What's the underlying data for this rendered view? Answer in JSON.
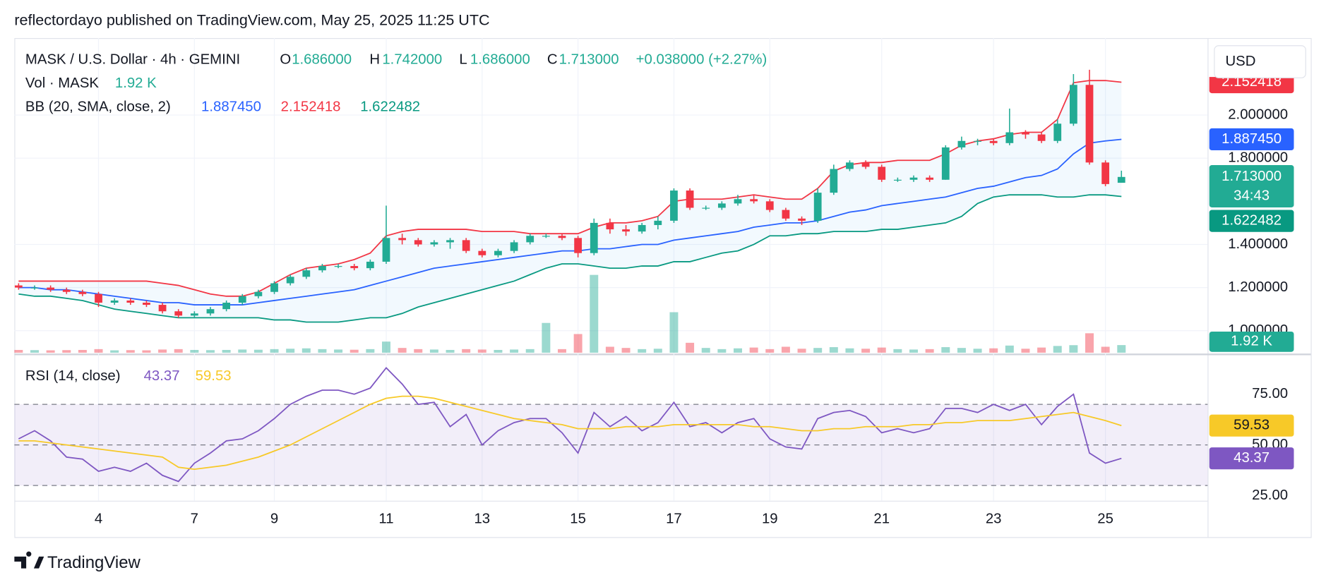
{
  "header": {
    "attribution": "reflectordayo published on TradingView.com, May 25, 2025 11:25 UTC"
  },
  "footer": {
    "brand": "TradingView"
  },
  "chart_data": [
    {
      "type": "candlestick",
      "legend": {
        "symbol": "MASK / U.S. Dollar · 4h · GEMINI",
        "ohlc": [
          {
            "key": "O",
            "value": "1.686000"
          },
          {
            "key": "H",
            "value": "1.742000"
          },
          {
            "key": "L",
            "value": "1.686000"
          },
          {
            "key": "C",
            "value": "1.713000"
          }
        ],
        "change": "+0.038000 (+2.27%)"
      },
      "categories": [
        null,
        null,
        null,
        null,
        null,
        "4",
        null,
        null,
        null,
        null,
        null,
        "7",
        null,
        null,
        null,
        null,
        "9",
        null,
        null,
        null,
        null,
        null,
        null,
        "11",
        null,
        null,
        null,
        null,
        null,
        "13",
        null,
        null,
        null,
        null,
        null,
        "15",
        null,
        null,
        null,
        null,
        null,
        "17",
        null,
        null,
        null,
        null,
        null,
        "19",
        null,
        null,
        null,
        null,
        null,
        null,
        "21",
        null,
        null,
        null,
        null,
        null,
        null,
        "23",
        null,
        null,
        null,
        null,
        null,
        null,
        "25",
        null
      ],
      "open": [
        1.21,
        1.2,
        1.2,
        1.19,
        1.18,
        1.17,
        1.13,
        1.14,
        1.13,
        1.12,
        1.09,
        1.07,
        1.08,
        1.1,
        1.13,
        1.16,
        1.18,
        1.22,
        1.25,
        1.28,
        1.3,
        1.3,
        1.29,
        1.32,
        1.43,
        1.42,
        1.4,
        1.41,
        1.42,
        1.37,
        1.35,
        1.37,
        1.41,
        1.44,
        1.44,
        1.43,
        1.36,
        1.5,
        1.47,
        1.46,
        1.49,
        1.51,
        1.65,
        1.57,
        1.57,
        1.59,
        1.61,
        1.6,
        1.56,
        1.52,
        1.51,
        1.64,
        1.75,
        1.78,
        1.76,
        1.7,
        1.7,
        1.71,
        1.7,
        1.85,
        1.88,
        1.88,
        1.87,
        1.92,
        1.91,
        1.88,
        1.96,
        2.14,
        1.78,
        1.686
      ],
      "high": [
        1.22,
        1.21,
        1.21,
        1.2,
        1.19,
        1.18,
        1.15,
        1.15,
        1.14,
        1.13,
        1.1,
        1.09,
        1.11,
        1.14,
        1.17,
        1.19,
        1.23,
        1.26,
        1.29,
        1.31,
        1.31,
        1.31,
        1.33,
        1.58,
        1.45,
        1.43,
        1.42,
        1.43,
        1.43,
        1.38,
        1.38,
        1.42,
        1.45,
        1.45,
        1.45,
        1.44,
        1.52,
        1.52,
        1.49,
        1.5,
        1.53,
        1.66,
        1.66,
        1.58,
        1.6,
        1.63,
        1.63,
        1.61,
        1.57,
        1.53,
        1.66,
        1.77,
        1.79,
        1.79,
        1.77,
        1.71,
        1.72,
        1.72,
        1.86,
        1.9,
        1.89,
        1.89,
        2.03,
        1.93,
        1.92,
        1.98,
        2.19,
        2.21,
        1.79,
        1.742
      ],
      "low": [
        1.19,
        1.19,
        1.18,
        1.17,
        1.16,
        1.11,
        1.12,
        1.12,
        1.11,
        1.08,
        1.06,
        1.06,
        1.07,
        1.09,
        1.12,
        1.15,
        1.17,
        1.21,
        1.24,
        1.27,
        1.29,
        1.28,
        1.28,
        1.31,
        1.4,
        1.39,
        1.39,
        1.38,
        1.36,
        1.34,
        1.34,
        1.36,
        1.4,
        1.43,
        1.42,
        1.34,
        1.35,
        1.45,
        1.44,
        1.45,
        1.47,
        1.5,
        1.56,
        1.56,
        1.56,
        1.58,
        1.59,
        1.55,
        1.51,
        1.49,
        1.5,
        1.63,
        1.74,
        1.75,
        1.69,
        1.69,
        1.69,
        1.69,
        1.7,
        1.84,
        1.86,
        1.86,
        1.86,
        1.89,
        1.87,
        1.87,
        1.95,
        1.77,
        1.67,
        1.686
      ],
      "close": [
        1.2,
        1.2,
        1.19,
        1.18,
        1.17,
        1.13,
        1.14,
        1.13,
        1.12,
        1.09,
        1.07,
        1.08,
        1.1,
        1.13,
        1.16,
        1.18,
        1.22,
        1.25,
        1.28,
        1.3,
        1.3,
        1.29,
        1.32,
        1.43,
        1.42,
        1.4,
        1.41,
        1.42,
        1.37,
        1.35,
        1.37,
        1.41,
        1.44,
        1.44,
        1.43,
        1.36,
        1.5,
        1.47,
        1.46,
        1.49,
        1.51,
        1.65,
        1.57,
        1.57,
        1.59,
        1.61,
        1.6,
        1.56,
        1.52,
        1.51,
        1.64,
        1.75,
        1.78,
        1.76,
        1.7,
        1.7,
        1.71,
        1.7,
        1.85,
        1.88,
        1.88,
        1.87,
        1.92,
        1.91,
        1.88,
        1.96,
        2.14,
        1.78,
        1.68,
        1.713
      ],
      "up_color": "#22ab94",
      "down_color": "#f23645",
      "ylim": [
        0.898,
        2.357
      ],
      "yticks": [
        {
          "value": 1.0,
          "label": "1.000000"
        },
        {
          "value": 1.2,
          "label": "1.200000"
        },
        {
          "value": 1.4,
          "label": "1.400000"
        },
        {
          "value": 1.8,
          "label": "1.800000"
        },
        {
          "value": 2.0,
          "label": "2.000000"
        }
      ],
      "grid": true,
      "currency": "USD",
      "countdown": "34:43",
      "volume": {
        "title": "Vol · MASK",
        "last_label": "1.92 K",
        "values": [
          700,
          650,
          600,
          650,
          700,
          900,
          600,
          650,
          600,
          800,
          900,
          700,
          650,
          700,
          800,
          750,
          900,
          1000,
          1100,
          900,
          800,
          750,
          900,
          2800,
          1200,
          900,
          800,
          700,
          900,
          800,
          700,
          800,
          900,
          7500,
          900,
          4700,
          19600,
          1500,
          1200,
          900,
          1000,
          10200,
          2500,
          1200,
          900,
          1100,
          1300,
          900,
          1500,
          1000,
          1200,
          1400,
          1100,
          1000,
          1300,
          900,
          800,
          900,
          1400,
          1200,
          1000,
          1100,
          1800,
          1000,
          1300,
          1700,
          1900,
          4900,
          1500,
          1920
        ]
      },
      "bollinger": {
        "title": "BB (20, SMA, close, 2)",
        "fill": "rgba(33,150,243,0.06)",
        "series": [
          {
            "color": "#2962ff",
            "last_label": "1.887450",
            "values": [
              1.2,
              1.2,
              1.19,
              1.19,
              1.18,
              1.17,
              1.16,
              1.15,
              1.14,
              1.13,
              1.13,
              1.12,
              1.12,
              1.12,
              1.12,
              1.13,
              1.14,
              1.15,
              1.16,
              1.17,
              1.18,
              1.19,
              1.21,
              1.23,
              1.25,
              1.27,
              1.29,
              1.3,
              1.31,
              1.32,
              1.33,
              1.34,
              1.35,
              1.36,
              1.37,
              1.37,
              1.38,
              1.38,
              1.39,
              1.4,
              1.4,
              1.42,
              1.43,
              1.44,
              1.45,
              1.46,
              1.48,
              1.49,
              1.5,
              1.5,
              1.51,
              1.53,
              1.55,
              1.56,
              1.58,
              1.59,
              1.6,
              1.61,
              1.62,
              1.64,
              1.66,
              1.67,
              1.69,
              1.71,
              1.72,
              1.75,
              1.82,
              1.87,
              1.88,
              1.88745
            ]
          },
          {
            "color": "#f23645",
            "last_label": "2.152418",
            "values": [
              1.23,
              1.23,
              1.23,
              1.23,
              1.23,
              1.23,
              1.23,
              1.23,
              1.23,
              1.22,
              1.21,
              1.19,
              1.17,
              1.16,
              1.16,
              1.18,
              1.22,
              1.26,
              1.29,
              1.3,
              1.31,
              1.33,
              1.36,
              1.44,
              1.46,
              1.47,
              1.47,
              1.47,
              1.47,
              1.46,
              1.46,
              1.46,
              1.45,
              1.45,
              1.45,
              1.45,
              1.48,
              1.5,
              1.5,
              1.51,
              1.53,
              1.6,
              1.61,
              1.61,
              1.61,
              1.62,
              1.63,
              1.62,
              1.61,
              1.61,
              1.66,
              1.74,
              1.77,
              1.78,
              1.78,
              1.79,
              1.79,
              1.79,
              1.82,
              1.86,
              1.88,
              1.89,
              1.91,
              1.92,
              1.92,
              1.98,
              2.15,
              2.16,
              2.16,
              2.152418
            ]
          },
          {
            "color": "#089981",
            "last_label": "1.622482",
            "values": [
              1.17,
              1.16,
              1.16,
              1.15,
              1.14,
              1.12,
              1.1,
              1.09,
              1.08,
              1.07,
              1.06,
              1.06,
              1.06,
              1.06,
              1.06,
              1.06,
              1.05,
              1.05,
              1.04,
              1.04,
              1.04,
              1.05,
              1.06,
              1.06,
              1.08,
              1.11,
              1.13,
              1.15,
              1.17,
              1.19,
              1.21,
              1.23,
              1.26,
              1.29,
              1.31,
              1.31,
              1.3,
              1.29,
              1.29,
              1.3,
              1.3,
              1.32,
              1.32,
              1.34,
              1.36,
              1.37,
              1.4,
              1.44,
              1.44,
              1.45,
              1.45,
              1.46,
              1.46,
              1.46,
              1.47,
              1.47,
              1.48,
              1.49,
              1.5,
              1.53,
              1.59,
              1.62,
              1.63,
              1.63,
              1.63,
              1.62,
              1.62,
              1.63,
              1.63,
              1.622482
            ]
          }
        ]
      }
    },
    {
      "type": "line",
      "title": "RSI (14, close)",
      "series": [
        {
          "color": "#7e57c2",
          "values": [
            53,
            57,
            52,
            44,
            43,
            37,
            39,
            37,
            41,
            35,
            32,
            41,
            46,
            52,
            53,
            57,
            63,
            70,
            74,
            77,
            77,
            75,
            78,
            88,
            80,
            70,
            71,
            59,
            65,
            50,
            57,
            61,
            63,
            63,
            56,
            46,
            66,
            59,
            64,
            57,
            61,
            71,
            59,
            61,
            56,
            61,
            63,
            53,
            49,
            48,
            63,
            66,
            67,
            64,
            56,
            58,
            56,
            58,
            68,
            68,
            66,
            70,
            67,
            70,
            60,
            69,
            75,
            46,
            41,
            43.37
          ]
        },
        {
          "color": "#f7c928",
          "values": [
            52,
            52,
            51,
            50,
            49,
            48,
            47,
            46,
            45,
            44,
            39,
            38,
            39,
            40,
            42,
            44,
            47,
            50,
            54,
            58,
            62,
            66,
            70,
            73,
            74,
            74,
            73,
            71,
            69,
            67,
            65,
            63,
            62,
            61,
            60,
            58,
            58,
            58,
            59,
            59,
            59,
            60,
            60,
            60,
            60,
            60,
            59,
            59,
            58,
            57,
            57,
            58,
            58,
            59,
            59,
            59,
            60,
            60,
            61,
            61,
            62,
            62,
            62,
            63,
            64,
            65,
            66,
            64,
            62,
            59.53
          ]
        }
      ],
      "ylim": [
        22.5,
        94.2
      ],
      "yticks": [
        {
          "value": 25,
          "label": "25.00"
        },
        {
          "value": 50,
          "label": "50.00"
        },
        {
          "value": 75,
          "label": "75.00"
        }
      ],
      "bands": [
        70,
        50,
        30
      ],
      "band_fill": "rgba(126,87,194,0.1)"
    }
  ]
}
